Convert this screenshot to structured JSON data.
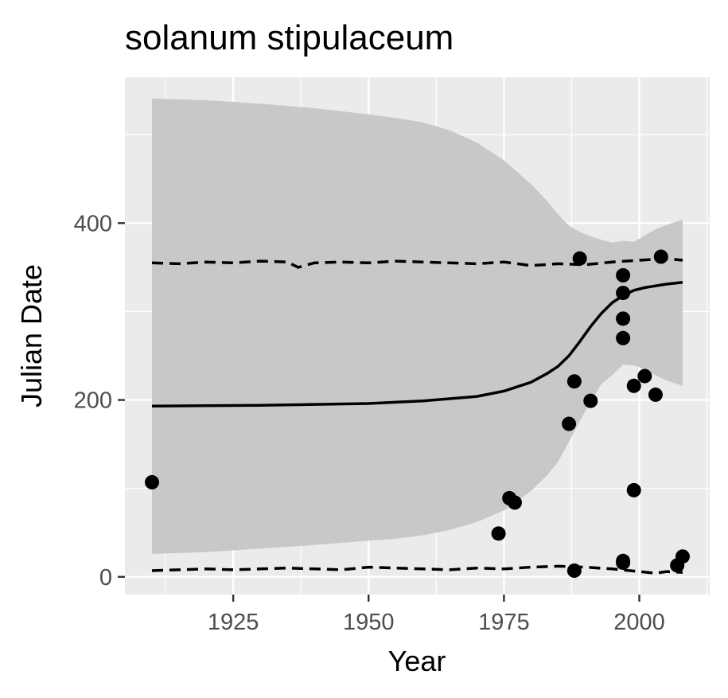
{
  "chart_data": {
    "type": "scatter",
    "title": "solanum stipulaceum",
    "xlabel": "Year",
    "ylabel": "Julian Date",
    "xlim": [
      1905,
      2013
    ],
    "ylim": [
      -20,
      565
    ],
    "x_ticks": [
      1925,
      1950,
      1975,
      2000
    ],
    "x_tick_labels": [
      "1925",
      "1950",
      "1975",
      "2000"
    ],
    "y_ticks": [
      0,
      200,
      400
    ],
    "y_tick_labels": [
      "0",
      "200",
      "400"
    ],
    "grid": true,
    "legend": "none",
    "colors": {
      "panel": "#ebebeb",
      "grid": "#ffffff",
      "ribbon": "#c8c8c8",
      "points": "#000000",
      "line": "#000000",
      "tick_text": "#4d4d4d"
    },
    "points": [
      {
        "x": 1910,
        "y": 107
      },
      {
        "x": 1974,
        "y": 49
      },
      {
        "x": 1976,
        "y": 89
      },
      {
        "x": 1977,
        "y": 84
      },
      {
        "x": 1987,
        "y": 173
      },
      {
        "x": 1988,
        "y": 221
      },
      {
        "x": 1988,
        "y": 7
      },
      {
        "x": 1989,
        "y": 360
      },
      {
        "x": 1991,
        "y": 199
      },
      {
        "x": 1997,
        "y": 341
      },
      {
        "x": 1997,
        "y": 321
      },
      {
        "x": 1997,
        "y": 292
      },
      {
        "x": 1997,
        "y": 270
      },
      {
        "x": 1997,
        "y": 18
      },
      {
        "x": 1997,
        "y": 16
      },
      {
        "x": 1999,
        "y": 216
      },
      {
        "x": 1999,
        "y": 98
      },
      {
        "x": 2001,
        "y": 227
      },
      {
        "x": 2003,
        "y": 206
      },
      {
        "x": 2004,
        "y": 362
      },
      {
        "x": 2007,
        "y": 13
      },
      {
        "x": 2008,
        "y": 23
      }
    ],
    "fit_line": {
      "x": [
        1910,
        1930,
        1950,
        1960,
        1970,
        1975,
        1980,
        1983,
        1985,
        1987,
        1989,
        1991,
        1993,
        1995,
        1997,
        1999,
        2001,
        2003,
        2005,
        2008
      ],
      "y": [
        193,
        194,
        196,
        199,
        204,
        210,
        220,
        230,
        238,
        250,
        266,
        283,
        298,
        310,
        318,
        324,
        327,
        329,
        331,
        333
      ]
    },
    "ribbon": {
      "x": [
        1910,
        1920,
        1930,
        1940,
        1950,
        1955,
        1960,
        1965,
        1970,
        1975,
        1980,
        1983,
        1985,
        1987,
        1989,
        1991,
        1993,
        1995,
        1997,
        1999,
        2001,
        2003,
        2005,
        2008
      ],
      "upper": [
        541,
        539,
        535,
        530,
        523,
        519,
        514,
        505,
        491,
        471,
        444,
        425,
        410,
        397,
        390,
        385,
        381,
        378,
        380,
        379,
        386,
        393,
        398,
        404
      ],
      "lower": [
        26,
        28,
        32,
        36,
        41,
        43,
        47,
        53,
        62,
        75,
        97,
        115,
        130,
        153,
        176,
        198,
        218,
        228,
        240,
        239,
        235,
        228,
        222,
        216
      ]
    },
    "upper_dashed": {
      "x": [
        1910,
        1915,
        1920,
        1925,
        1930,
        1935,
        1937,
        1940,
        1945,
        1950,
        1955,
        1960,
        1965,
        1970,
        1975,
        1980,
        1985,
        1990,
        1995,
        2000,
        2005,
        2008
      ],
      "y": [
        355,
        354,
        356,
        355,
        357,
        356,
        350,
        355,
        356,
        355,
        357,
        356,
        355,
        354,
        356,
        352,
        354,
        353,
        356,
        358,
        360,
        358
      ]
    },
    "lower_dashed": {
      "x": [
        1910,
        1915,
        1920,
        1925,
        1930,
        1935,
        1940,
        1945,
        1950,
        1955,
        1960,
        1965,
        1970,
        1975,
        1980,
        1985,
        1990,
        1995,
        2000,
        2003,
        2005,
        2008
      ],
      "y": [
        7,
        8,
        9,
        8,
        9,
        10,
        9,
        8,
        11,
        10,
        9,
        8,
        10,
        9,
        11,
        12,
        11,
        9,
        6,
        4,
        6,
        5
      ]
    }
  }
}
